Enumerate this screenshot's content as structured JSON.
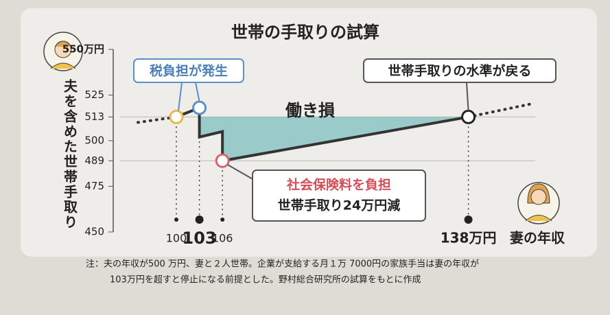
{
  "chart_data": {
    "type": "line",
    "title": "世帯の手取りの試算",
    "y_label": "夫を含めた世帯手取り",
    "x_label": "妻の年収",
    "x": [
      95,
      100,
      103,
      103,
      106,
      106,
      138,
      146
    ],
    "series": [
      {
        "color": "#333333",
        "values": [
          510,
          513,
          518,
          502,
          505,
          489,
          513,
          520
        ]
      }
    ],
    "area_color": "#8cc3c6",
    "xlim": [
      93,
      147
    ],
    "ylim": [
      450,
      550
    ],
    "yticks": [
      450,
      475,
      489,
      500,
      513,
      525,
      {
        "value": 550,
        "label": "550万円"
      }
    ],
    "xticks": [
      100,
      103,
      106,
      {
        "value": 138,
        "label": "138万円"
      }
    ],
    "grid_lines": [
      489,
      513
    ],
    "markers": [
      {
        "x": 100,
        "y": 513,
        "color": "#e8b84a"
      },
      {
        "x": 103,
        "y": 518,
        "color": "#5b8fc7"
      },
      {
        "x": 106,
        "y": 489,
        "color": "#d9646b"
      },
      {
        "x": 138,
        "y": 513,
        "color": "#222222"
      }
    ],
    "annotations": {
      "tax": "税負担が発生",
      "recover": "世帯手取りの水準が戻る",
      "loss": "働き損",
      "social": "社会保険料を負担",
      "decrease": "世帯手取り24万円減"
    },
    "notes": [
      "注：夫の年収が500 万円、妻と２人世帯。企業が支給する月１万 7000円の家族手当は妻の年収が",
      "103万円を超すと停止になる前提とした。野村総合研究所の試算をもとに作成"
    ]
  }
}
